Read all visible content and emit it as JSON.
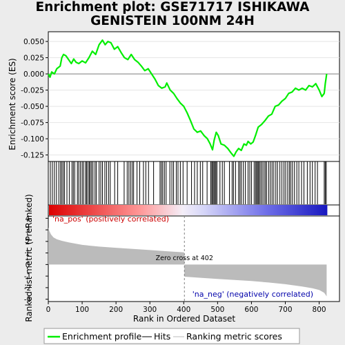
{
  "title_line1": "Enrichment plot: GSE71717 ISHIKAWA",
  "title_line2": "GENISTEIN 100NM 24H",
  "chart_data": [
    {
      "type": "line",
      "name": "enrichment-profile",
      "ylabel": "Enrichment score (ES)",
      "xlim": [
        0,
        860
      ],
      "ylim": [
        -0.135,
        0.065
      ],
      "yticks": [
        "0.050",
        "0.025",
        "0.000",
        "-0.025",
        "-0.050",
        "-0.075",
        "-0.100",
        "-0.125"
      ],
      "ytick_values": [
        0.05,
        0.025,
        0.0,
        -0.025,
        -0.05,
        -0.075,
        -0.1,
        -0.125
      ],
      "line_color": "#00ee00",
      "points": [
        [
          0,
          0.0
        ],
        [
          5,
          -0.005
        ],
        [
          10,
          0.003
        ],
        [
          18,
          0.0
        ],
        [
          25,
          0.008
        ],
        [
          35,
          0.012
        ],
        [
          40,
          0.025
        ],
        [
          45,
          0.03
        ],
        [
          52,
          0.028
        ],
        [
          60,
          0.022
        ],
        [
          68,
          0.016
        ],
        [
          75,
          0.023
        ],
        [
          82,
          0.018
        ],
        [
          90,
          0.016
        ],
        [
          100,
          0.02
        ],
        [
          110,
          0.017
        ],
        [
          120,
          0.025
        ],
        [
          130,
          0.035
        ],
        [
          140,
          0.03
        ],
        [
          150,
          0.045
        ],
        [
          160,
          0.052
        ],
        [
          168,
          0.045
        ],
        [
          176,
          0.05
        ],
        [
          185,
          0.048
        ],
        [
          195,
          0.038
        ],
        [
          205,
          0.042
        ],
        [
          215,
          0.033
        ],
        [
          225,
          0.025
        ],
        [
          235,
          0.022
        ],
        [
          245,
          0.03
        ],
        [
          255,
          0.022
        ],
        [
          265,
          0.018
        ],
        [
          275,
          0.012
        ],
        [
          285,
          0.005
        ],
        [
          295,
          0.008
        ],
        [
          305,
          0.0
        ],
        [
          315,
          -0.008
        ],
        [
          325,
          -0.018
        ],
        [
          335,
          -0.022
        ],
        [
          345,
          -0.02
        ],
        [
          350,
          -0.014
        ],
        [
          360,
          -0.025
        ],
        [
          370,
          -0.03
        ],
        [
          380,
          -0.038
        ],
        [
          390,
          -0.045
        ],
        [
          400,
          -0.05
        ],
        [
          410,
          -0.06
        ],
        [
          420,
          -0.072
        ],
        [
          430,
          -0.085
        ],
        [
          440,
          -0.09
        ],
        [
          450,
          -0.088
        ],
        [
          460,
          -0.095
        ],
        [
          470,
          -0.1
        ],
        [
          478,
          -0.108
        ],
        [
          485,
          -0.117
        ],
        [
          490,
          -0.102
        ],
        [
          496,
          -0.09
        ],
        [
          502,
          -0.095
        ],
        [
          510,
          -0.108
        ],
        [
          520,
          -0.11
        ],
        [
          530,
          -0.115
        ],
        [
          540,
          -0.122
        ],
        [
          548,
          -0.127
        ],
        [
          555,
          -0.12
        ],
        [
          562,
          -0.115
        ],
        [
          570,
          -0.118
        ],
        [
          578,
          -0.108
        ],
        [
          585,
          -0.11
        ],
        [
          590,
          -0.104
        ],
        [
          598,
          -0.108
        ],
        [
          605,
          -0.105
        ],
        [
          612,
          -0.095
        ],
        [
          620,
          -0.082
        ],
        [
          630,
          -0.078
        ],
        [
          640,
          -0.072
        ],
        [
          650,
          -0.065
        ],
        [
          660,
          -0.062
        ],
        [
          670,
          -0.05
        ],
        [
          680,
          -0.048
        ],
        [
          690,
          -0.042
        ],
        [
          700,
          -0.038
        ],
        [
          710,
          -0.03
        ],
        [
          720,
          -0.028
        ],
        [
          730,
          -0.022
        ],
        [
          740,
          -0.025
        ],
        [
          750,
          -0.022
        ],
        [
          760,
          -0.025
        ],
        [
          770,
          -0.018
        ],
        [
          780,
          -0.02
        ],
        [
          790,
          -0.015
        ],
        [
          800,
          -0.025
        ],
        [
          808,
          -0.035
        ],
        [
          815,
          -0.03
        ],
        [
          818,
          -0.015
        ],
        [
          820,
          -0.008
        ],
        [
          822,
          0.0
        ]
      ]
    },
    {
      "type": "line",
      "name": "hits",
      "hits_rank_positions": [
        6,
        12,
        18,
        24,
        31,
        36,
        40,
        44,
        48,
        55,
        62,
        70,
        74,
        78,
        86,
        90,
        95,
        100,
        104,
        110,
        113,
        117,
        121,
        124,
        128,
        132,
        138,
        142,
        150,
        155,
        160,
        167,
        172,
        178,
        183,
        196,
        205,
        224,
        233,
        238,
        243,
        248,
        252,
        262,
        270,
        281,
        288,
        296,
        311,
        330,
        334,
        338,
        343,
        348,
        359,
        365,
        370,
        378,
        383,
        390,
        398,
        410,
        423,
        432,
        440,
        449,
        456,
        469,
        480,
        483,
        486,
        489,
        492,
        495,
        498,
        507,
        514,
        520,
        535,
        543,
        547,
        553,
        562,
        566,
        570,
        576,
        582,
        590,
        595,
        600,
        608,
        612,
        615,
        618,
        621,
        624,
        628,
        632,
        637,
        641,
        645,
        651,
        656,
        661,
        666,
        672,
        677,
        684,
        690,
        696,
        701,
        707,
        712,
        716,
        721,
        727,
        734,
        740,
        748,
        755,
        765,
        773,
        780,
        788,
        795,
        815,
        818,
        821
      ]
    },
    {
      "type": "area",
      "name": "ranking-metric",
      "xlabel": "Rank in Ordered Dataset",
      "ylabel": "Ranked list metric (PreRanked)",
      "xlim": [
        0,
        860
      ],
      "ylim": [
        -3.2,
        4.2
      ],
      "xticks": [
        0,
        100,
        200,
        300,
        400,
        500,
        600,
        700,
        800
      ],
      "yticks": [
        4,
        3,
        2,
        1,
        0,
        -1,
        -2,
        -3
      ],
      "zero_cross": 402,
      "zero_cross_label": "Zero cross at 402",
      "pos_label": "'na_pos' (positively correlated)",
      "neg_label": "'na_neg' (negatively correlated)",
      "pos_label_color": "#cc0000",
      "neg_label_color": "#0000aa",
      "fill_color": "#bbbbbb",
      "profile": [
        [
          0,
          3.2
        ],
        [
          3,
          2.9
        ],
        [
          8,
          2.6
        ],
        [
          15,
          2.35
        ],
        [
          25,
          2.18
        ],
        [
          40,
          2.05
        ],
        [
          60,
          1.92
        ],
        [
          100,
          1.7
        ],
        [
          150,
          1.55
        ],
        [
          200,
          1.45
        ],
        [
          250,
          1.35
        ],
        [
          300,
          1.25
        ],
        [
          350,
          1.15
        ],
        [
          401,
          1.05
        ],
        [
          402,
          -1.05
        ],
        [
          450,
          -1.15
        ],
        [
          500,
          -1.25
        ],
        [
          550,
          -1.33
        ],
        [
          600,
          -1.43
        ],
        [
          650,
          -1.55
        ],
        [
          700,
          -1.7
        ],
        [
          750,
          -1.9
        ],
        [
          780,
          -2.05
        ],
        [
          800,
          -2.2
        ],
        [
          815,
          -2.45
        ],
        [
          822,
          -2.75
        ]
      ]
    }
  ],
  "legend": {
    "profile_label": "Enrichment profile",
    "hits_label": "Hits",
    "metric_label": "Ranking metric scores",
    "profile_color": "#00ee00",
    "hits_color": "#000000",
    "metric_color": "#bbbbbb"
  }
}
